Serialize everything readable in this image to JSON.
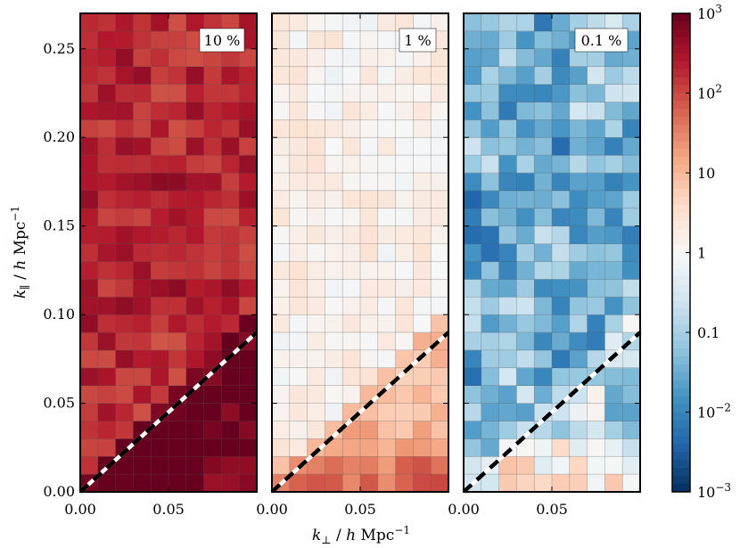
{
  "chart_data": {
    "type": "heatmap",
    "xlabel": "k_⊥ / h Mpc^−1",
    "ylabel": "k_∥ / h Mpc^−1",
    "xlim": [
      0.0,
      0.1
    ],
    "ylim": [
      0.0,
      0.27
    ],
    "grid": {
      "nx": 10,
      "ny": 27
    },
    "x_ticks": [
      "0.00",
      "0.05"
    ],
    "y_ticks": [
      "0.00",
      "0.05",
      "0.10",
      "0.15",
      "0.20",
      "0.25"
    ],
    "colorbar": {
      "scale": "log",
      "range": [
        0.001,
        1000
      ],
      "tick_labels": [
        "10^3",
        "10^2",
        "10",
        "1",
        "0.1",
        "10^-2",
        "10^-3"
      ],
      "colors": [
        "#053061",
        "#2166ac",
        "#4393c3",
        "#92c5de",
        "#d1e5f0",
        "#f7f7f7",
        "#fddbc7",
        "#f4a582",
        "#d6604d",
        "#b2182b",
        "#67001f"
      ]
    },
    "wedge_line": {
      "slope": 0.9,
      "style": "black/white dashed"
    },
    "panels": [
      {
        "label": "10 %",
        "ymax": 0.1,
        "ymax_upper": 0.3,
        "smoothness": 0.8,
        "noise": 0.35,
        "base_log": 2.3,
        "wedge_boost": 0.75,
        "low_boost": 0.25,
        "corner_low": 0.5
      },
      {
        "label": "1 %",
        "ymax": 0.08,
        "ymax_upper": 0.25,
        "smoothness": 0.7,
        "noise": 0.25,
        "base_log": 0.15,
        "wedge_boost": 0.8,
        "low_boost": 0.85,
        "corner_low": -0.3
      },
      {
        "label": "0.1 %",
        "ymax": 0.07,
        "ymax_upper": 0.2,
        "smoothness": 0.3,
        "noise": 0.65,
        "base_log": -1.45,
        "wedge_boost": 0.8,
        "low_boost": 0.9,
        "corner_low": 0.1
      }
    ]
  }
}
